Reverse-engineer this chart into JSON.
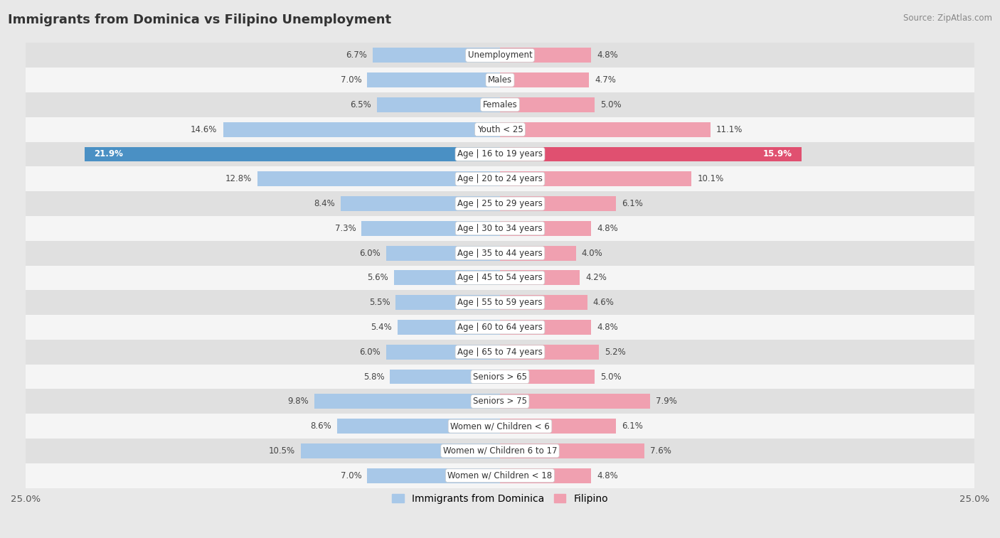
{
  "title": "Immigrants from Dominica vs Filipino Unemployment",
  "source": "Source: ZipAtlas.com",
  "categories": [
    "Unemployment",
    "Males",
    "Females",
    "Youth < 25",
    "Age | 16 to 19 years",
    "Age | 20 to 24 years",
    "Age | 25 to 29 years",
    "Age | 30 to 34 years",
    "Age | 35 to 44 years",
    "Age | 45 to 54 years",
    "Age | 55 to 59 years",
    "Age | 60 to 64 years",
    "Age | 65 to 74 years",
    "Seniors > 65",
    "Seniors > 75",
    "Women w/ Children < 6",
    "Women w/ Children 6 to 17",
    "Women w/ Children < 18"
  ],
  "dominica_values": [
    6.7,
    7.0,
    6.5,
    14.6,
    21.9,
    12.8,
    8.4,
    7.3,
    6.0,
    5.6,
    5.5,
    5.4,
    6.0,
    5.8,
    9.8,
    8.6,
    10.5,
    7.0
  ],
  "filipino_values": [
    4.8,
    4.7,
    5.0,
    11.1,
    15.9,
    10.1,
    6.1,
    4.8,
    4.0,
    4.2,
    4.6,
    4.8,
    5.2,
    5.0,
    7.9,
    6.1,
    7.6,
    4.8
  ],
  "dominica_color": "#A8C8E8",
  "filipino_color": "#F0A0B0",
  "dominica_highlight_color": "#4A90C4",
  "filipino_highlight_color": "#E05070",
  "bg_color": "#E8E8E8",
  "row_color_light": "#F5F5F5",
  "row_color_dark": "#E0E0E0",
  "axis_max": 25.0,
  "legend_label_dominica": "Immigrants from Dominica",
  "legend_label_filipino": "Filipino"
}
